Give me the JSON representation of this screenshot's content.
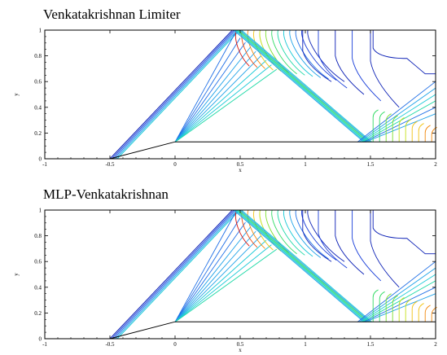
{
  "chart_data": [
    {
      "type": "contour",
      "title": "Venkatakrishnan Limiter",
      "xlabel": "x",
      "ylabel": "y",
      "xlim": [
        -1,
        2
      ],
      "ylim": [
        0,
        1
      ],
      "xticks": [
        "-1",
        "-0.5",
        "0",
        "0.5",
        "1",
        "1.5",
        "2"
      ],
      "yticks": [
        "0",
        "0.2",
        "0.4",
        "0.6",
        "0.8",
        "1"
      ],
      "wedge": {
        "x": [
          -0.5,
          0,
          2
        ],
        "y": [
          0,
          0.1317,
          0.1317
        ]
      },
      "shocks": {
        "incident": {
          "from": [
            -0.5,
            0
          ],
          "to": [
            0.45,
            1
          ]
        },
        "reflected": {
          "from": [
            0.45,
            1
          ],
          "to": [
            1.45,
            0.13
          ]
        },
        "second": {
          "from": [
            0,
            0.13
          ],
          "to": [
            0.78,
            0.62
          ]
        }
      },
      "grid": false
    },
    {
      "type": "contour",
      "title": "MLP-Venkatakrishnan",
      "xlabel": "x",
      "ylabel": "y",
      "xlim": [
        -1,
        2
      ],
      "ylim": [
        0,
        1
      ],
      "xticks": [
        "-1",
        "-0.5",
        "0",
        "0.5",
        "1",
        "1.5",
        "2"
      ],
      "yticks": [
        "0",
        "0.2",
        "0.4",
        "0.6",
        "0.8",
        "1"
      ],
      "wedge": {
        "x": [
          -0.5,
          0,
          2
        ],
        "y": [
          0,
          0.1317,
          0.1317
        ]
      },
      "shocks": {
        "incident": {
          "from": [
            -0.5,
            0
          ],
          "to": [
            0.45,
            1
          ]
        },
        "reflected": {
          "from": [
            0.45,
            1
          ],
          "to": [
            1.45,
            0.13
          ]
        },
        "second": {
          "from": [
            0,
            0.13
          ],
          "to": [
            0.78,
            0.62
          ]
        }
      },
      "grid": false
    }
  ],
  "colors": {
    "contour_palette": [
      "#0a1fb5",
      "#1a3fd9",
      "#1f6fe6",
      "#1ea2e8",
      "#19c9d6",
      "#18d8a4",
      "#34dc66",
      "#7fe030",
      "#c6e01c",
      "#f2c414",
      "#f28a10",
      "#ec4a0c",
      "#d8100c"
    ],
    "frame": "#000000"
  }
}
